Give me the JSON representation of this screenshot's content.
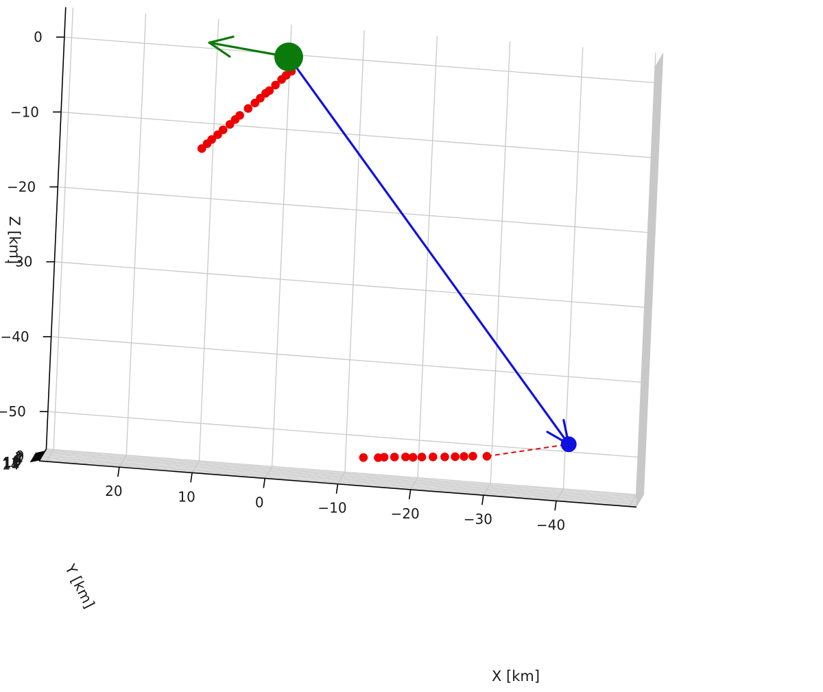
{
  "chart_data": {
    "type": "scatter",
    "projection": "3d",
    "title": "",
    "xlabel": "X [km]",
    "ylabel": "Y [km]",
    "zlabel": "Z [km]",
    "x_ticks": [
      "20",
      "10",
      "0",
      "−10",
      "−20",
      "−30",
      "−40"
    ],
    "y_ticks": [
      "0",
      "2",
      "4",
      "6",
      "8",
      "10",
      "12",
      "14"
    ],
    "z_ticks": [
      "0",
      "−10",
      "−20",
      "−30",
      "−40",
      "−50"
    ],
    "grid": true,
    "colors": {
      "source_marker": "#0a7a0a",
      "source_arrow": "#0a7a0a",
      "trajectory": "#1010e0",
      "target_marker": "#1010e0",
      "points": "#ee0000",
      "guide_line": "#ee0000",
      "grid": "#c8c8c8"
    },
    "series": [
      {
        "kind": "marker",
        "color": "green",
        "size": "large",
        "point": {
          "x": 0,
          "y": 0,
          "z": 0
        }
      },
      {
        "kind": "arrow",
        "color": "green",
        "from": {
          "x": 0,
          "y": 0,
          "z": 0
        },
        "to": {
          "x": 11,
          "y": -1,
          "z": 1
        }
      },
      {
        "kind": "arrow",
        "color": "blue",
        "from": {
          "x": 0,
          "y": 0,
          "z": 0
        },
        "to": {
          "x": -41,
          "y": 8,
          "z": -48
        }
      },
      {
        "kind": "marker",
        "color": "blue",
        "size": "small",
        "point": {
          "x": -41,
          "y": 8,
          "z": -48
        }
      },
      {
        "kind": "scatter",
        "color": "red",
        "points": [
          {
            "x": 11.3,
            "y": 1.0,
            "z": -13.0
          },
          {
            "x": 10.6,
            "y": 1.0,
            "z": -12.3
          },
          {
            "x": 10.0,
            "y": 1.0,
            "z": -11.7
          },
          {
            "x": 9.2,
            "y": 1.0,
            "z": -11.0
          },
          {
            "x": 8.5,
            "y": 1.0,
            "z": -10.3
          },
          {
            "x": 7.6,
            "y": 1.0,
            "z": -9.5
          },
          {
            "x": 6.9,
            "y": 1.0,
            "z": -8.8
          },
          {
            "x": 6.3,
            "y": 1.0,
            "z": -8.2
          },
          {
            "x": 5.2,
            "y": 1.0,
            "z": -7.2
          },
          {
            "x": 4.3,
            "y": 1.0,
            "z": -6.4
          },
          {
            "x": 3.6,
            "y": 1.0,
            "z": -5.7
          },
          {
            "x": 2.9,
            "y": 1.0,
            "z": -5.0
          },
          {
            "x": 2.4,
            "y": 1.0,
            "z": -4.6
          },
          {
            "x": 1.6,
            "y": 1.0,
            "z": -3.8
          },
          {
            "x": 0.8,
            "y": 1.0,
            "z": -3.0
          },
          {
            "x": 0.2,
            "y": 1.0,
            "z": -2.4
          },
          {
            "x": -0.5,
            "y": 1.0,
            "z": -1.8
          }
        ]
      },
      {
        "kind": "scatter",
        "color": "red",
        "points": [
          {
            "x": -13.2,
            "y": 12.6,
            "z": -51.5
          },
          {
            "x": -15.2,
            "y": 12.1,
            "z": -51.4
          },
          {
            "x": -16.0,
            "y": 11.9,
            "z": -51.3
          },
          {
            "x": -17.4,
            "y": 11.5,
            "z": -51.2
          },
          {
            "x": -18.9,
            "y": 11.2,
            "z": -51.1
          },
          {
            "x": -19.9,
            "y": 10.9,
            "z": -51.1
          },
          {
            "x": -21.1,
            "y": 10.6,
            "z": -51.0
          },
          {
            "x": -22.6,
            "y": 10.2,
            "z": -50.9
          },
          {
            "x": -24.2,
            "y": 9.9,
            "z": -50.8
          },
          {
            "x": -25.6,
            "y": 9.5,
            "z": -50.7
          },
          {
            "x": -26.8,
            "y": 9.2,
            "z": -50.6
          },
          {
            "x": -28.0,
            "y": 8.9,
            "z": -50.5
          },
          {
            "x": -29.9,
            "y": 8.5,
            "z": -50.4
          }
        ]
      },
      {
        "kind": "dashed-line",
        "color": "red",
        "from": {
          "x": -29.9,
          "y": 8.5,
          "z": -50.4
        },
        "to": {
          "x": -41,
          "y": 8,
          "z": -48
        }
      }
    ]
  }
}
